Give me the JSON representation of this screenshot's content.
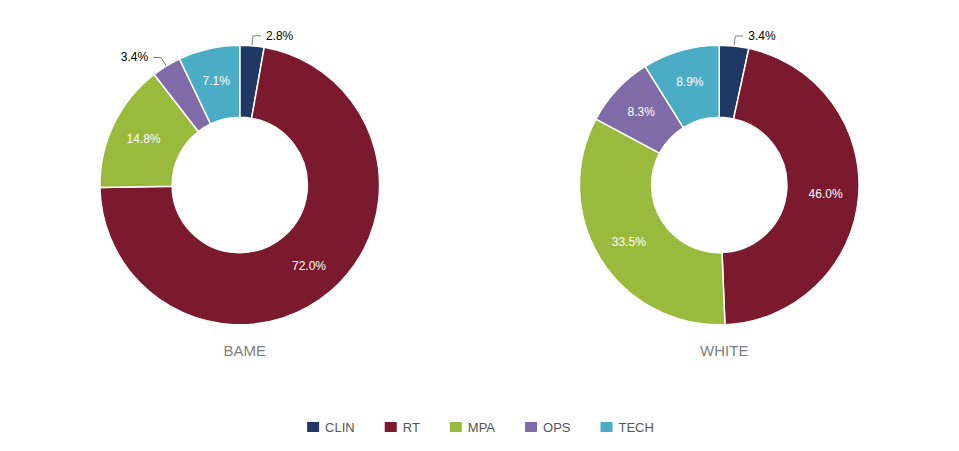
{
  "chart_data": [
    {
      "type": "pie",
      "title": "BAME",
      "categories": [
        "CLIN",
        "RT",
        "MPA",
        "OPS",
        "TECH"
      ],
      "values": [
        2.8,
        72.0,
        14.8,
        3.4,
        7.1
      ],
      "value_labels": [
        "2.8%",
        "72.0%",
        "14.8%",
        "3.4%",
        "7.1%"
      ],
      "colors": [
        "#1f3864",
        "#7b1a2e",
        "#9aba3e",
        "#7f6ba8",
        "#4bacc6"
      ],
      "data_labels": true,
      "legend": "bottom"
    },
    {
      "type": "pie",
      "title": "WHITE",
      "categories": [
        "CLIN",
        "RT",
        "MPA",
        "OPS",
        "TECH"
      ],
      "values": [
        3.4,
        46.0,
        33.5,
        8.3,
        8.9
      ],
      "value_labels": [
        "3.4%",
        "46.0%",
        "33.5%",
        "8.3%",
        "8.9%"
      ],
      "colors": [
        "#1f3864",
        "#7b1a2e",
        "#9aba3e",
        "#7f6ba8",
        "#4bacc6"
      ],
      "data_labels": true,
      "legend": "bottom"
    }
  ]
}
